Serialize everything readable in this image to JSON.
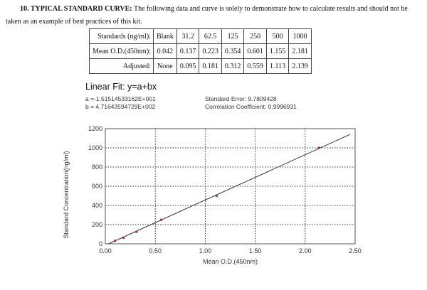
{
  "heading": {
    "line1": "10. TYPICAL STANDARD CURVE: The following data and curve is solely to demonstrate how to calculate results and should not be",
    "line2": "taken as an example of best practices of this kit."
  },
  "table": {
    "rows": [
      [
        "Standards (ng/ml):",
        "Blank",
        "31.2",
        "62.5",
        "125",
        "250",
        "500",
        "1000"
      ],
      [
        "Mean O.D.(450nm):",
        "0.042",
        "0.137",
        "0.223",
        "0.354",
        "0.601",
        "1.155",
        "2.181"
      ],
      [
        "Adjusted:",
        "None",
        "0.095",
        "0.181",
        "0.312",
        "0.559",
        "1.113",
        "2.139"
      ]
    ]
  },
  "fit": {
    "title": "Linear Fit: y=a+bx",
    "a": "a =-1.51514533162E+001",
    "b": "b = 4.71643594729E+002",
    "se": "Standard Error: 9.7809428",
    "cc": "Correlation Coefficient: 0.9996931"
  },
  "chart_data": {
    "type": "scatter",
    "xlabel": "Mean O.D.(450nm)",
    "ylabel": "Standard Concentration(ng/ml)",
    "xlim": [
      0,
      2.5
    ],
    "ylim": [
      0,
      1200
    ],
    "xticks": [
      "0.00",
      "0.50",
      "1.00",
      "1.50",
      "2.00",
      "2.50"
    ],
    "yticks": [
      "0",
      "200",
      "400",
      "600",
      "800",
      "1000",
      "1200"
    ],
    "grid": true,
    "x": [
      0.095,
      0.181,
      0.312,
      0.559,
      1.113,
      2.139
    ],
    "y": [
      31.2,
      62.5,
      125,
      250,
      500,
      1000
    ],
    "fit_line": {
      "a": -15.1514533162,
      "b": 471.643594729,
      "x_range": [
        0.03,
        2.45
      ]
    },
    "colors": {
      "point": "#b0204a",
      "line": "#333333"
    }
  }
}
